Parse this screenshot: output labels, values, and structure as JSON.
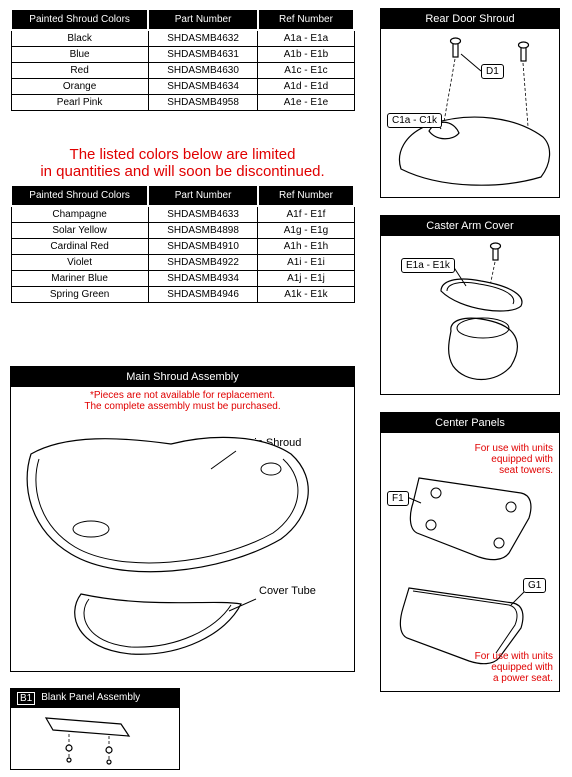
{
  "table1": {
    "headers": [
      "Painted Shroud Colors",
      "Part Number",
      "Ref Number"
    ],
    "col_widths": [
      "40%",
      "32%",
      "28%"
    ],
    "rows": [
      [
        "Black",
        "SHDASMB4632",
        "A1a - E1a"
      ],
      [
        "Blue",
        "SHDASMB4631",
        "A1b - E1b"
      ],
      [
        "Red",
        "SHDASMB4630",
        "A1c - E1c"
      ],
      [
        "Orange",
        "SHDASMB4634",
        "A1d - E1d"
      ],
      [
        "Pearl Pink",
        "SHDASMB4958",
        "A1e - E1e"
      ]
    ]
  },
  "warning": "The listed colors below are limited\nin quantities and will soon be discontinued.",
  "table2": {
    "headers": [
      "Painted Shroud Colors",
      "Part Number",
      "Ref Number"
    ],
    "col_widths": [
      "40%",
      "32%",
      "28%"
    ],
    "rows": [
      [
        "Champagne",
        "SHDASMB4633",
        "A1f - E1f"
      ],
      [
        "Solar Yellow",
        "SHDASMB4898",
        "A1g - E1g"
      ],
      [
        "Cardinal Red",
        "SHDASMB4910",
        "A1h - E1h"
      ],
      [
        "Violet",
        "SHDASMB4922",
        "A1i - E1i"
      ],
      [
        "Mariner Blue",
        "SHDASMB4934",
        "A1j - E1j"
      ],
      [
        "Spring Green",
        "SHDASMB4946",
        "A1k - E1k"
      ]
    ]
  },
  "main_shroud": {
    "title": "Main Shroud Assembly",
    "note1": "*Pieces are not available for replacement.",
    "note2": "The complete assembly must be purchased.",
    "label_main": "Main Shroud",
    "label_cover": "Cover Tube"
  },
  "blank_panel": {
    "code": "B1",
    "title": "Blank Panel Assembly"
  },
  "rear_door": {
    "title": "Rear Door Shroud",
    "callout_d1": "D1",
    "callout_c1": "C1a - C1k"
  },
  "caster": {
    "title": "Caster Arm Cover",
    "callout_e1": "E1a - E1k"
  },
  "center_panels": {
    "title": "Center Panels",
    "callout_f1": "F1",
    "callout_g1": "G1",
    "note_top": "For use with units\nequipped with\nseat towers.",
    "note_bot": "For use with units\nequipped with\na power seat."
  },
  "colors": {
    "header_bg": "#000000",
    "header_fg": "#ffffff",
    "border": "#000000",
    "warn": "#e00000",
    "bg": "#ffffff"
  }
}
